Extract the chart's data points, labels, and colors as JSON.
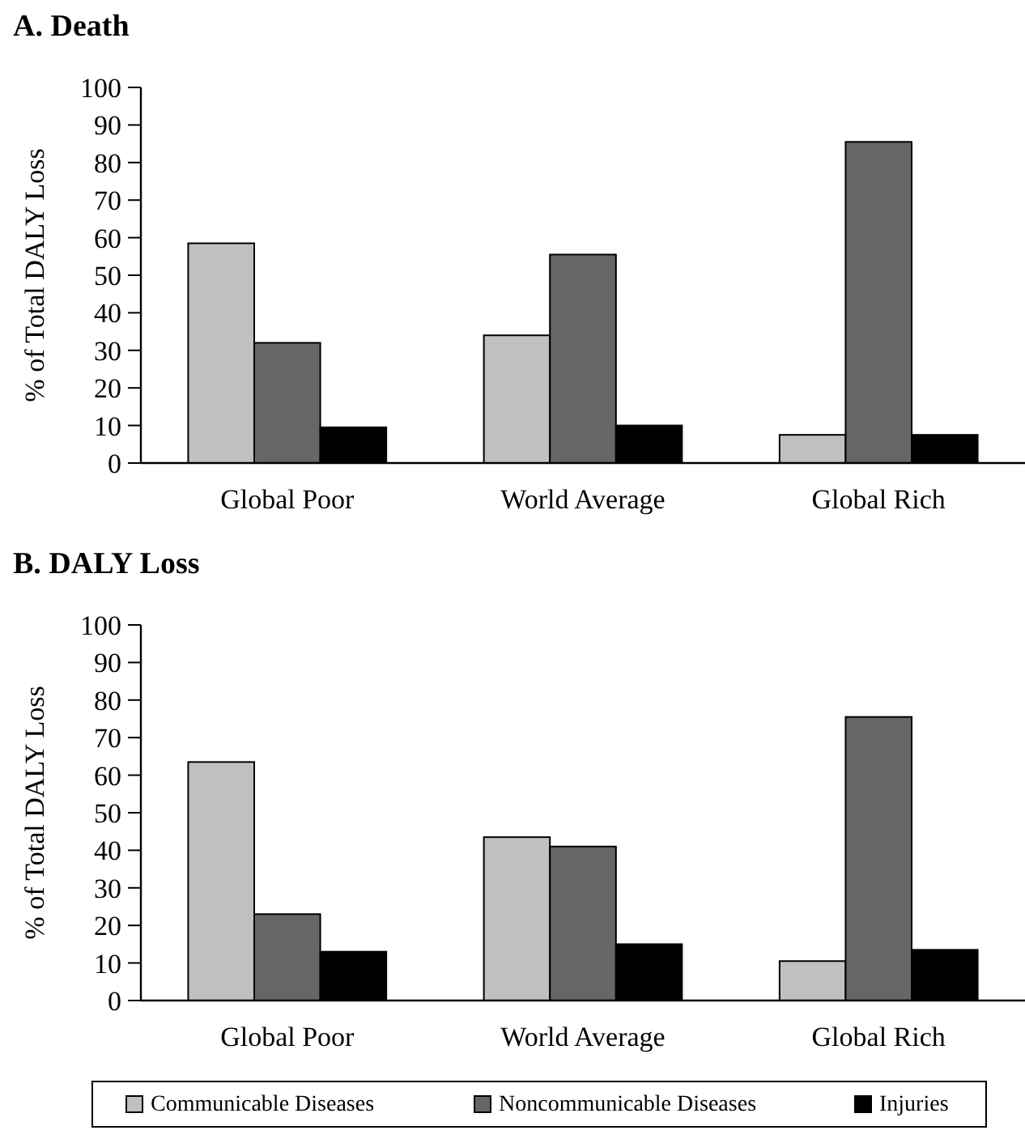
{
  "chart_data": [
    {
      "type": "bar",
      "title": "A. Death",
      "ylabel": "% of Total DALY Loss",
      "categories": [
        "Global Poor",
        "World Average",
        "Global Rich"
      ],
      "ylim": [
        0,
        100
      ],
      "yticks": [
        0,
        10,
        20,
        30,
        40,
        50,
        60,
        70,
        80,
        90,
        100
      ],
      "grid": false,
      "legend": false,
      "series": [
        {
          "color": "#c0c0c0",
          "values": [
            58.5,
            34,
            7.5
          ]
        },
        {
          "color": "#666666",
          "values": [
            32,
            55.5,
            85.5
          ]
        },
        {
          "color": "#000000",
          "values": [
            9.5,
            10,
            7.5
          ]
        }
      ]
    },
    {
      "type": "bar",
      "title": "B. DALY Loss",
      "ylabel": "% of Total DALY Loss",
      "categories": [
        "Global Poor",
        "World Average",
        "Global Rich"
      ],
      "ylim": [
        0,
        100
      ],
      "yticks": [
        0,
        10,
        20,
        30,
        40,
        50,
        60,
        70,
        80,
        90,
        100
      ],
      "grid": false,
      "legend": "bottom",
      "series": [
        {
          "name": "Communicable Diseases",
          "color": "#c0c0c0",
          "values": [
            63.5,
            43.5,
            10.5
          ]
        },
        {
          "name": "Noncommunicable Diseases",
          "color": "#666666",
          "values": [
            23,
            41,
            75.5
          ]
        },
        {
          "name": "Injuries",
          "color": "#000000",
          "values": [
            13,
            15,
            13.5
          ]
        }
      ]
    }
  ]
}
